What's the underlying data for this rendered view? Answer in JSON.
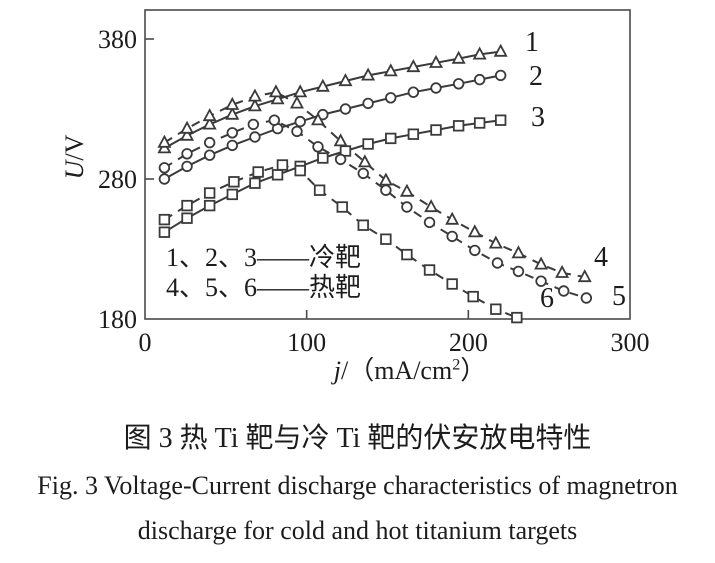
{
  "figure": {
    "caption_cn": "图 3  热 Ti 靶与冷 Ti 靶的伏安放电特性",
    "caption_en_line1": "Fig. 3  Voltage-Current discharge characteristics of magnetron",
    "caption_en_line2": "discharge for cold and hot titanium targets"
  },
  "legend": {
    "line1": "1、2、3——冷靶",
    "line2": "4、5、6——热靶"
  },
  "axes": {
    "y": {
      "title_var": "U",
      "title_rest": "/V"
    },
    "x": {
      "title_var": "j",
      "title_mid": "/（mA/cm",
      "title_sup": "2",
      "title_end": "）"
    }
  },
  "chart_data": {
    "type": "line",
    "title": "Voltage-Current discharge characteristics of magnetron discharge for cold and hot titanium targets",
    "xlabel": "j/(mA/cm2)",
    "ylabel": "U/V",
    "xlim": [
      0,
      300
    ],
    "ylim": [
      180,
      400
    ],
    "grid": false,
    "legend_position": "inside lower-left",
    "line_color": "#3a3a3a",
    "x_ticks": [
      {
        "v": 0,
        "label": "0"
      },
      {
        "v": 100,
        "label": "100"
      },
      {
        "v": 200,
        "label": "200"
      },
      {
        "v": 300,
        "label": "300"
      }
    ],
    "y_ticks": [
      {
        "v": 380,
        "label": "380"
      },
      {
        "v": 280,
        "label": "280"
      },
      {
        "v": 180,
        "label": "180"
      }
    ],
    "series": [
      {
        "name": "curve 1 cold target",
        "label": "1",
        "target": "cold",
        "line": "solid",
        "marker": "triangle",
        "label_pos": {
          "x": 532,
          "y": 43
        },
        "points": [
          [
            12,
            302
          ],
          [
            26,
            311
          ],
          [
            40,
            319
          ],
          [
            54,
            326
          ],
          [
            68,
            332
          ],
          [
            82,
            337
          ],
          [
            96,
            342
          ],
          [
            110,
            346
          ],
          [
            124,
            350
          ],
          [
            138,
            354
          ],
          [
            152,
            357
          ],
          [
            166,
            360
          ],
          [
            180,
            363
          ],
          [
            194,
            366
          ],
          [
            207,
            369
          ],
          [
            220,
            371
          ]
        ]
      },
      {
        "name": "curve 2 cold target",
        "label": "2",
        "target": "cold",
        "line": "solid",
        "marker": "circle",
        "label_pos": {
          "x": 536,
          "y": 77
        },
        "points": [
          [
            12,
            280
          ],
          [
            26,
            289
          ],
          [
            40,
            297
          ],
          [
            54,
            304
          ],
          [
            68,
            310
          ],
          [
            82,
            316
          ],
          [
            96,
            321
          ],
          [
            110,
            326
          ],
          [
            124,
            330
          ],
          [
            138,
            334
          ],
          [
            152,
            338
          ],
          [
            166,
            342
          ],
          [
            180,
            345
          ],
          [
            194,
            348
          ],
          [
            207,
            351
          ],
          [
            220,
            354
          ]
        ]
      },
      {
        "name": "curve 3 cold target",
        "label": "3",
        "target": "cold",
        "line": "solid",
        "marker": "square",
        "label_pos": {
          "x": 538,
          "y": 118
        },
        "points": [
          [
            12,
            242
          ],
          [
            26,
            252
          ],
          [
            40,
            261
          ],
          [
            54,
            269
          ],
          [
            68,
            277
          ],
          [
            82,
            283
          ],
          [
            96,
            289
          ],
          [
            110,
            295
          ],
          [
            124,
            300
          ],
          [
            138,
            305
          ],
          [
            152,
            309
          ],
          [
            166,
            312
          ],
          [
            180,
            315
          ],
          [
            194,
            318
          ],
          [
            207,
            320
          ],
          [
            220,
            322
          ]
        ]
      },
      {
        "name": "curve 4 hot target",
        "label": "4",
        "target": "hot",
        "line": "dashed",
        "marker": "triangle",
        "label_pos": {
          "x": 601,
          "y": 258
        },
        "points": [
          [
            12,
            306
          ],
          [
            26,
            316
          ],
          [
            40,
            325
          ],
          [
            54,
            333
          ],
          [
            68,
            339
          ],
          [
            81,
            342
          ],
          [
            94,
            334
          ],
          [
            107,
            322
          ],
          [
            121,
            307
          ],
          [
            136,
            292
          ],
          [
            149,
            279
          ],
          [
            162,
            271
          ],
          [
            177,
            260
          ],
          [
            190,
            251
          ],
          [
            204,
            242
          ],
          [
            217,
            234
          ],
          [
            231,
            227
          ],
          [
            245,
            219
          ],
          [
            258,
            213
          ],
          [
            272,
            210
          ]
        ]
      },
      {
        "name": "curve 5 hot target",
        "label": "5",
        "target": "hot",
        "line": "dashed",
        "marker": "circle",
        "label_pos": {
          "x": 619,
          "y": 297
        },
        "points": [
          [
            12,
            288
          ],
          [
            26,
            298
          ],
          [
            40,
            306
          ],
          [
            54,
            313
          ],
          [
            67,
            319
          ],
          [
            80,
            322
          ],
          [
            94,
            314
          ],
          [
            107,
            303
          ],
          [
            121,
            294
          ],
          [
            135,
            284
          ],
          [
            149,
            272
          ],
          [
            162,
            260
          ],
          [
            176,
            249
          ],
          [
            190,
            239
          ],
          [
            204,
            229
          ],
          [
            218,
            220
          ],
          [
            231,
            214
          ],
          [
            245,
            207
          ],
          [
            259,
            200
          ],
          [
            273,
            195
          ]
        ]
      },
      {
        "name": "curve 6 hot target",
        "label": "6",
        "target": "hot",
        "line": "dashed",
        "marker": "square",
        "label_pos": {
          "x": 547,
          "y": 299
        },
        "points": [
          [
            12,
            251
          ],
          [
            26,
            261
          ],
          [
            40,
            270
          ],
          [
            55,
            278
          ],
          [
            70,
            285
          ],
          [
            85,
            290
          ],
          [
            96,
            286
          ],
          [
            108,
            272
          ],
          [
            122,
            260
          ],
          [
            135,
            247
          ],
          [
            149,
            237
          ],
          [
            162,
            226
          ],
          [
            176,
            215
          ],
          [
            190,
            205
          ],
          [
            203,
            196
          ],
          [
            217,
            187
          ],
          [
            230,
            181
          ]
        ]
      }
    ]
  }
}
